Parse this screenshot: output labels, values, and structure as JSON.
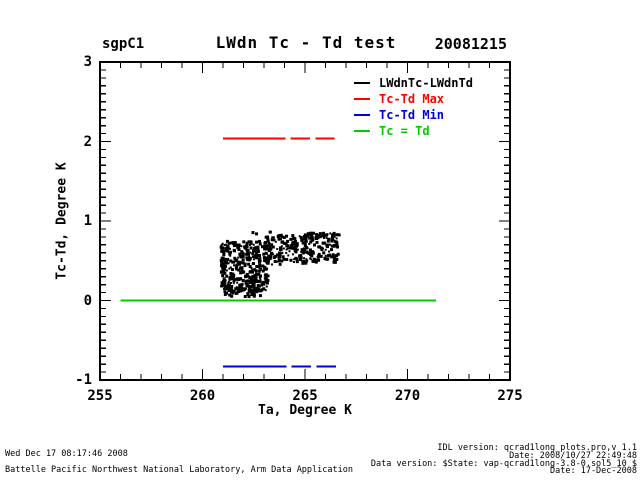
{
  "header": {
    "site": "sgpC1",
    "title": "LWdn Tc - Td test",
    "date": "20081215"
  },
  "chart_data": {
    "type": "scatter",
    "title": "LWdn Tc - Td test",
    "xlabel": "Ta, Degree K",
    "ylabel": "Tc-Td, Degree K",
    "xlim": [
      255,
      275
    ],
    "ylim": [
      -1,
      3
    ],
    "x_major_ticks": [
      255,
      260,
      265,
      270,
      275
    ],
    "y_major_ticks": [
      -1,
      0,
      1,
      2,
      3
    ],
    "x_minor_step": 1,
    "y_minor_step": 0.1,
    "grid": false,
    "legend_position": "top-right-inside",
    "legend": [
      {
        "label": "LWdnTc-LWdnTd",
        "color": "#000000"
      },
      {
        "label": "Tc-Td Max",
        "color": "#ff0000"
      },
      {
        "label": "Tc-Td Min",
        "color": "#0000dd"
      },
      {
        "label": "Tc = Td",
        "color": "#00cc00"
      }
    ],
    "lines": [
      {
        "name": "tc-td-max-line",
        "label": "Tc-Td Max",
        "color": "#ff0000",
        "y": 2.04,
        "segments": [
          [
            261.0,
            264.05
          ],
          [
            264.3,
            265.25
          ],
          [
            265.5,
            266.45
          ]
        ]
      },
      {
        "name": "tc-eq-td-line",
        "label": "Tc = Td",
        "color": "#00cc00",
        "y": 0.0,
        "segments": [
          [
            256.0,
            271.4
          ]
        ]
      },
      {
        "name": "tc-td-min-line",
        "label": "Tc-Td Min",
        "color": "#0000dd",
        "y": -0.83,
        "segments": [
          [
            261.0,
            264.1
          ],
          [
            264.35,
            265.3
          ],
          [
            265.55,
            266.5
          ]
        ]
      }
    ],
    "scatter": {
      "name": "LWdnTc-LWdnTd",
      "color": "#000000",
      "marker_px": 3,
      "seed": 20081215,
      "x_range": [
        260.85,
        266.7
      ],
      "y_range": [
        0.05,
        0.87
      ],
      "clusters": [
        {
          "x": [
            260.9,
            263.2
          ],
          "y": [
            0.12,
            0.75
          ],
          "count": 380
        },
        {
          "x": [
            261.0,
            262.95
          ],
          "y": [
            0.05,
            0.16
          ],
          "count": 45
        },
        {
          "x": [
            263.1,
            265.1
          ],
          "y": [
            0.45,
            0.8
          ],
          "count": 130
        },
        {
          "x": [
            264.95,
            266.7
          ],
          "y": [
            0.48,
            0.85
          ],
          "count": 130
        },
        {
          "x": [
            262.4,
            266.4
          ],
          "y": [
            0.76,
            0.87
          ],
          "count": 28
        }
      ],
      "outliers": [
        [
          262.27,
          0.05
        ]
      ]
    }
  },
  "footer_left": [
    "Wed Dec 17 08:17:46 2008",
    "Battelle Pacific Northwest National Laboratory, Arm Data Application"
  ],
  "footer_right": [
    "IDL version: qcrad1long_plots.pro,v 1.1",
    "Date: 2008/10/27 22:49:48",
    "Data version: $State: vap-qcrad1long-3.8-0.sol5_10 $",
    "Date: 17-Dec-2008"
  ]
}
